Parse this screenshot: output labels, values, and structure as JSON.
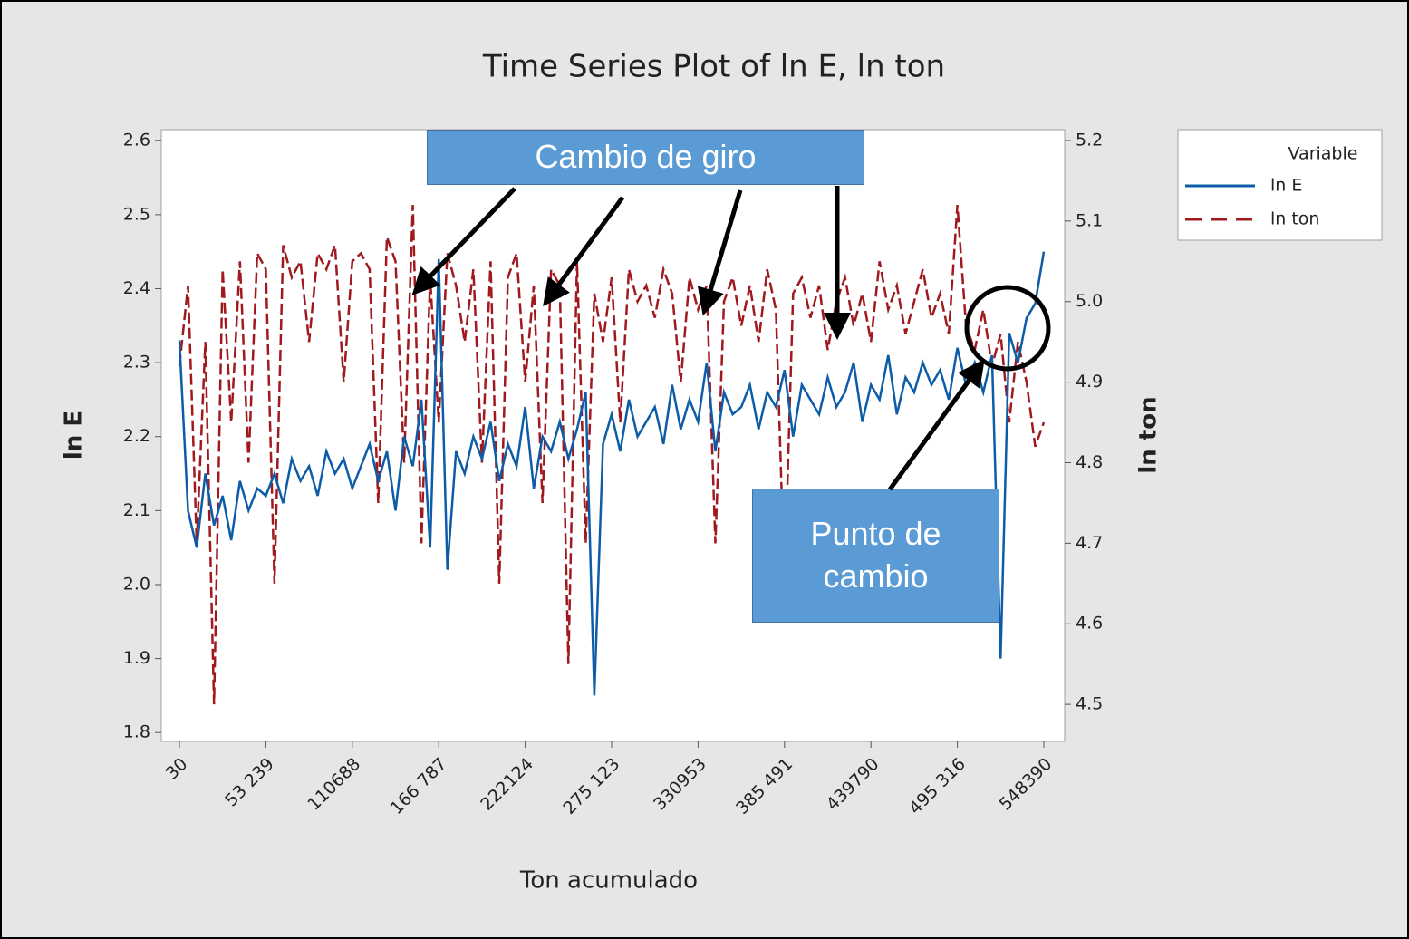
{
  "chart_data": {
    "type": "line",
    "title": "Time Series Plot of ln E, ln ton",
    "x_label": "Ton acumulado",
    "y_label": "ln E",
    "y2_label": "ln ton",
    "legend_title": "Variable",
    "legend": "right",
    "categories": [
      "30",
      null,
      null,
      null,
      null,
      null,
      null,
      null,
      null,
      null,
      "53 239",
      null,
      null,
      null,
      null,
      null,
      null,
      null,
      null,
      null,
      "110688",
      null,
      null,
      null,
      null,
      null,
      null,
      null,
      null,
      null,
      "166 787",
      null,
      null,
      null,
      null,
      null,
      null,
      null,
      null,
      null,
      "222124",
      null,
      null,
      null,
      null,
      null,
      null,
      null,
      null,
      null,
      "275 123",
      null,
      null,
      null,
      null,
      null,
      null,
      null,
      null,
      null,
      "330953",
      null,
      null,
      null,
      null,
      null,
      null,
      null,
      null,
      null,
      "385 491",
      null,
      null,
      null,
      null,
      null,
      null,
      null,
      null,
      null,
      "439790",
      null,
      null,
      null,
      null,
      null,
      null,
      null,
      null,
      null,
      "495 316",
      null,
      null,
      null,
      null,
      null,
      null,
      null,
      null,
      null,
      "548390"
    ],
    "ylim": [
      1.788,
      2.615
    ],
    "yticks": [
      1.8,
      1.9,
      {
        "value": 2,
        "label": "2.0"
      },
      2.1,
      2.2,
      2.3,
      2.4,
      2.5,
      2.6
    ],
    "y2lim": [
      4.454,
      5.2135
    ],
    "y2ticks": [
      4.5,
      4.6,
      4.7,
      4.8,
      4.9,
      {
        "value": 5,
        "label": "5.0"
      },
      5.1,
      5.2
    ],
    "series": [
      {
        "name": "ln E",
        "color": "#0c5ca8",
        "dashed": false,
        "values": [
          2.33,
          2.1,
          2.05,
          2.15,
          2.08,
          2.12,
          2.06,
          2.14,
          2.1,
          2.13,
          2.12,
          2.15,
          2.11,
          2.17,
          2.14,
          2.16,
          2.12,
          2.18,
          2.15,
          2.17,
          2.13,
          2.16,
          2.19,
          2.14,
          2.18,
          2.1,
          2.2,
          2.16,
          2.25,
          2.05,
          2.44,
          2.02,
          2.18,
          2.15,
          2.2,
          2.17,
          2.22,
          2.14,
          2.19,
          2.16,
          2.24,
          2.13,
          2.2,
          2.18,
          2.22,
          2.17,
          2.21,
          2.26,
          1.85,
          2.19,
          2.23,
          2.18,
          2.25,
          2.2,
          2.22,
          2.24,
          2.19,
          2.27,
          2.21,
          2.25,
          2.22,
          2.3,
          2.18,
          2.26,
          2.23,
          2.24,
          2.27,
          2.21,
          2.26,
          2.24,
          2.29,
          2.2,
          2.27,
          2.25,
          2.23,
          2.28,
          2.24,
          2.26,
          2.3,
          2.22,
          2.27,
          2.25,
          2.31,
          2.23,
          2.28,
          2.26,
          2.3,
          2.27,
          2.29,
          2.25,
          2.32,
          2.27,
          2.3,
          2.26,
          2.31,
          1.9,
          2.34,
          2.3,
          2.36,
          2.38,
          2.45
        ]
      },
      {
        "name": "ln ton",
        "color": "#a0191e",
        "dashed": true,
        "axis": "y2",
        "values": [
          4.92,
          5.02,
          4.7,
          4.95,
          4.5,
          5.04,
          4.85,
          5.05,
          4.8,
          5.06,
          5.04,
          4.65,
          5.07,
          5.03,
          5.05,
          4.95,
          5.06,
          5.04,
          5.07,
          4.9,
          5.05,
          5.06,
          5.04,
          4.75,
          5.08,
          5.05,
          4.8,
          5.12,
          4.7,
          5.03,
          4.85,
          5.06,
          5.02,
          4.95,
          5.04,
          4.8,
          5.05,
          4.65,
          5.03,
          5.06,
          4.9,
          5.02,
          4.75,
          5.04,
          5.02,
          4.55,
          5.05,
          4.7,
          5.01,
          4.95,
          5.03,
          4.85,
          5.04,
          5.0,
          5.02,
          4.98,
          5.04,
          5.01,
          4.9,
          5.03,
          4.99,
          5.02,
          4.7,
          5.0,
          5.03,
          4.97,
          5.02,
          4.95,
          5.04,
          4.99,
          4.65,
          5.01,
          5.03,
          4.98,
          5.02,
          4.94,
          5.0,
          5.03,
          4.97,
          5.01,
          4.95,
          5.05,
          4.99,
          5.02,
          4.96,
          5.0,
          5.04,
          4.98,
          5.01,
          4.96,
          5.12,
          4.97,
          4.94,
          4.99,
          4.92,
          4.96,
          4.85,
          4.95,
          4.9,
          4.82,
          4.85
        ]
      }
    ],
    "annotations": [
      "Cambio de giro",
      "Punto de cambio"
    ]
  }
}
